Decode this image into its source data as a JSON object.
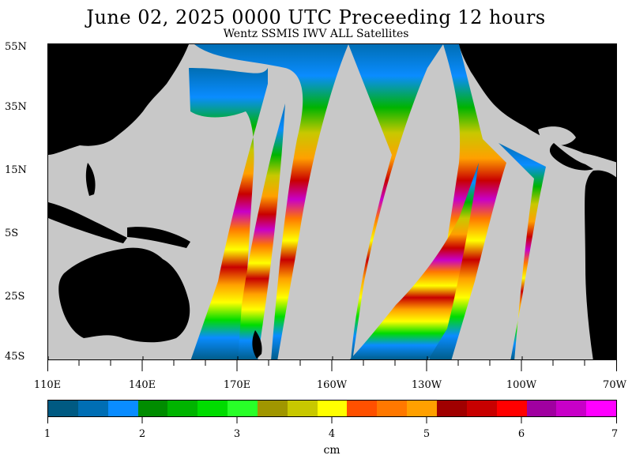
{
  "header": {
    "title": "June 02, 2025  0000 UTC Preceeding 12 hours",
    "subtitle": "Wentz SSMIS IWV ALL Satellites"
  },
  "map": {
    "lat_labels": [
      {
        "label": "55N"
      },
      {
        "label": "35N"
      },
      {
        "label": "15N"
      },
      {
        "label": "5S"
      },
      {
        "label": "25S"
      },
      {
        "label": "45S"
      }
    ],
    "lon_labels": [
      {
        "label": "110E"
      },
      {
        "label": "140E"
      },
      {
        "label": "170E"
      },
      {
        "label": "160W"
      },
      {
        "label": "130W"
      },
      {
        "label": "100W"
      },
      {
        "label": "70W"
      }
    ],
    "land_color": "#000000",
    "no_data_color": "#c8c8c8"
  },
  "colorbar": {
    "colors": [
      "#005a82",
      "#006eb4",
      "#0a8cff",
      "#008c00",
      "#00b400",
      "#00dc00",
      "#28ff28",
      "#a09600",
      "#c8c800",
      "#ffff00",
      "#ff5000",
      "#ff7800",
      "#ffa000",
      "#a00000",
      "#c80000",
      "#ff0000",
      "#a000a0",
      "#c800c8",
      "#ff00ff"
    ],
    "tick_labels": [
      "1",
      "2",
      "3",
      "4",
      "5",
      "6",
      "7"
    ],
    "unit": "cm"
  }
}
